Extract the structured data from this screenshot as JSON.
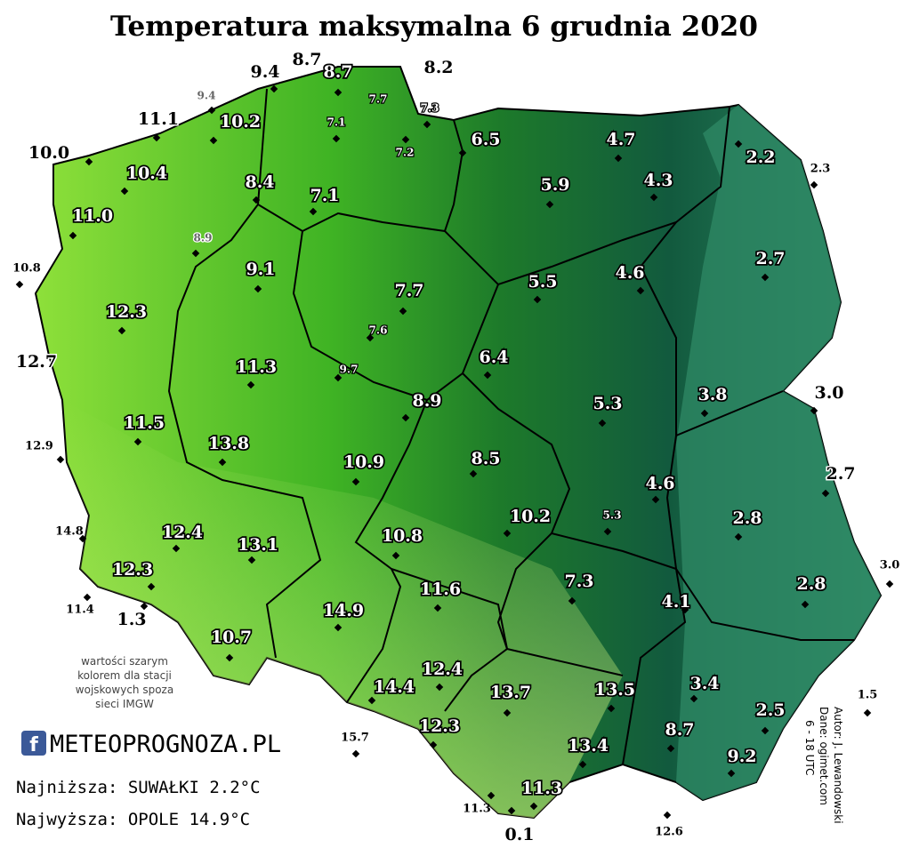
{
  "title": "Temperatura maksymalna 6 grudnia 2020",
  "stations": [
    {
      "value": "8.7",
      "style": "black"
    },
    {
      "value": "9.4",
      "style": "black"
    },
    {
      "value": "8.7",
      "style": "white"
    },
    {
      "value": "8.2",
      "style": "black"
    },
    {
      "value": "9.4",
      "style": "gray"
    },
    {
      "value": "7.7",
      "style": "small"
    },
    {
      "value": "7.3",
      "style": "small"
    },
    {
      "value": "11.1",
      "style": "black"
    },
    {
      "value": "10.2",
      "style": "white"
    },
    {
      "value": "7.1",
      "style": "small"
    },
    {
      "value": "6.5",
      "style": "white"
    },
    {
      "value": "4.7",
      "style": "white"
    },
    {
      "value": "2.2",
      "style": "white"
    },
    {
      "value": "7.2",
      "style": "small"
    },
    {
      "value": "10.0",
      "style": "black"
    },
    {
      "value": "2.3",
      "style": "black-small"
    },
    {
      "value": "10.4",
      "style": "white"
    },
    {
      "value": "8.4",
      "style": "white"
    },
    {
      "value": "5.9",
      "style": "white"
    },
    {
      "value": "4.3",
      "style": "white"
    },
    {
      "value": "7.1",
      "style": "white"
    },
    {
      "value": "11.0",
      "style": "white"
    },
    {
      "value": "8.9",
      "style": "gray"
    },
    {
      "value": "2.7",
      "style": "white"
    },
    {
      "value": "10.8",
      "style": "black-small"
    },
    {
      "value": "9.1",
      "style": "white"
    },
    {
      "value": "5.5",
      "style": "white"
    },
    {
      "value": "4.6",
      "style": "white"
    },
    {
      "value": "7.7",
      "style": "white"
    },
    {
      "value": "12.3",
      "style": "white"
    },
    {
      "value": "7.6",
      "style": "small"
    },
    {
      "value": "6.4",
      "style": "white"
    },
    {
      "value": "12.7",
      "style": "black"
    },
    {
      "value": "11.3",
      "style": "white"
    },
    {
      "value": "9.7",
      "style": "small"
    },
    {
      "value": "3.0",
      "style": "black"
    },
    {
      "value": "3.8",
      "style": "white"
    },
    {
      "value": "8.9",
      "style": "white"
    },
    {
      "value": "5.3",
      "style": "white"
    },
    {
      "value": "11.5",
      "style": "white"
    },
    {
      "value": "12.9",
      "style": "black-small"
    },
    {
      "value": "13.8",
      "style": "white"
    },
    {
      "value": "8.5",
      "style": "white"
    },
    {
      "value": "10.9",
      "style": "white"
    },
    {
      "value": "2.7",
      "style": "black"
    },
    {
      "value": "4.6",
      "style": "white"
    },
    {
      "value": "10.2",
      "style": "white"
    },
    {
      "value": "5.3",
      "style": "small"
    },
    {
      "value": "2.8",
      "style": "white"
    },
    {
      "value": "12.4",
      "style": "white"
    },
    {
      "value": "14.8",
      "style": "black-small"
    },
    {
      "value": "10.8",
      "style": "white"
    },
    {
      "value": "13.1",
      "style": "white"
    },
    {
      "value": "12.3",
      "style": "white"
    },
    {
      "value": "7.3",
      "style": "white"
    },
    {
      "value": "3.0",
      "style": "black-small"
    },
    {
      "value": "2.8",
      "style": "white"
    },
    {
      "value": "11.6",
      "style": "white"
    },
    {
      "value": "11.4",
      "style": "black-small"
    },
    {
      "value": "1.3",
      "style": "black"
    },
    {
      "value": "4.1",
      "style": "white"
    },
    {
      "value": "14.9",
      "style": "white"
    },
    {
      "value": "10.7",
      "style": "white"
    },
    {
      "value": "12.4",
      "style": "white"
    },
    {
      "value": "3.4",
      "style": "white"
    },
    {
      "value": "14.4",
      "style": "white"
    },
    {
      "value": "13.7",
      "style": "white"
    },
    {
      "value": "13.5",
      "style": "white"
    },
    {
      "value": "1.5",
      "style": "black-small"
    },
    {
      "value": "2.5",
      "style": "white"
    },
    {
      "value": "12.3",
      "style": "white"
    },
    {
      "value": "8.7",
      "style": "white"
    },
    {
      "value": "15.7",
      "style": "black-small"
    },
    {
      "value": "13.4",
      "style": "white"
    },
    {
      "value": "9.2",
      "style": "white"
    },
    {
      "value": "11.3",
      "style": "white"
    },
    {
      "value": "11.3",
      "style": "black-small"
    },
    {
      "value": "0.1",
      "style": "black"
    },
    {
      "value": "12.6",
      "style": "black-small"
    }
  ],
  "note": [
    "wartości szarym",
    "kolorem dla stacji",
    "wojskowych spoza",
    "sieci IMGW"
  ],
  "logo": "METEOPROGNOZA.PL",
  "lowest": "Najniższa: SUWAŁKI 2.2°C",
  "highest": "Najwyższa: OPOLE 14.9°C",
  "credits": [
    "Autor: J. Lewandowski",
    "Dane: ogimet.com",
    "6 - 18 UTC"
  ]
}
